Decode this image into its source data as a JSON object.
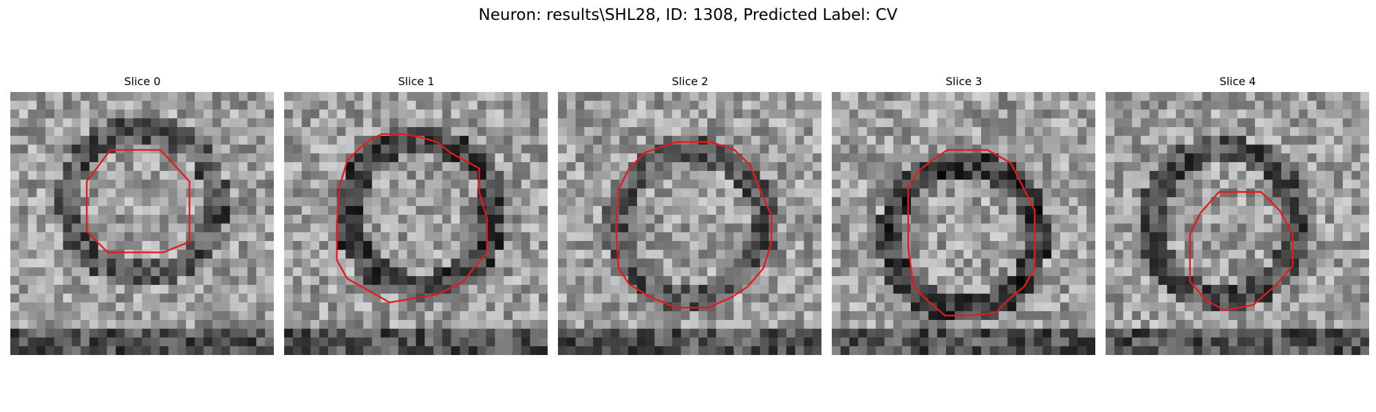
{
  "title": "Neuron: results\\SHL28, ID: 1308, Predicted Label: CV",
  "slices": [
    {
      "label": "Slice 0",
      "seed": 11,
      "center": [
        0.5,
        0.42
      ],
      "contrast": 0.3
    },
    {
      "label": "Slice 1",
      "seed": 23,
      "center": [
        0.52,
        0.46
      ],
      "contrast": 0.35
    },
    {
      "label": "Slice 2",
      "seed": 37,
      "center": [
        0.5,
        0.5
      ],
      "contrast": 0.28
    },
    {
      "label": "Slice 3",
      "seed": 41,
      "center": [
        0.5,
        0.55
      ],
      "contrast": 0.4
    },
    {
      "label": "Slice 4",
      "seed": 53,
      "center": [
        0.45,
        0.5
      ],
      "contrast": 0.32
    }
  ],
  "colors": {
    "contour": "#e41a1c"
  }
}
